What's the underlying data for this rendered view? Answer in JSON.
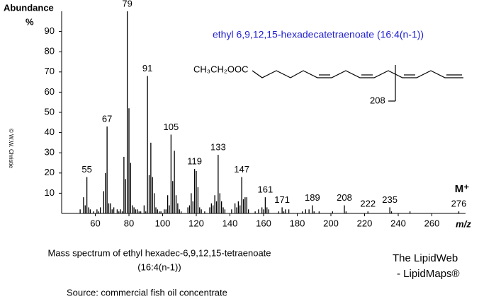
{
  "chart_data": {
    "type": "stem",
    "title": "ethyl 6,9,12,15-hexadecatetraenoate  (16:4(n-1))",
    "y_label": "Abundance",
    "y_unit": "%",
    "x_label": "m/z",
    "molecular_ion_label": "M⁺",
    "structure_formula": "CH₃CH₂OOC",
    "structure_fragment_label": "208",
    "caption": [
      "Mass spectrum of ethyl hexadec-6,9,12,15-tetraenoate",
      "(16:4(n-1))"
    ],
    "credit": [
      "The LipidWeb",
      "- LipidMaps®"
    ],
    "source": "Source:  commercial fish oil concentrate",
    "copyright": "© W.W. Christie",
    "color": "#000000",
    "xlim": [
      40,
      280
    ],
    "ylim": [
      0,
      100
    ],
    "xticks": [
      60,
      80,
      100,
      120,
      140,
      160,
      180,
      200,
      220,
      240,
      260
    ],
    "yticks": [
      10,
      20,
      30,
      40,
      50,
      60,
      70,
      80,
      90
    ],
    "x": [
      51,
      53,
      54,
      55,
      56,
      57,
      59,
      61,
      62,
      63,
      65,
      66,
      67,
      68,
      69,
      70,
      71,
      73,
      74,
      75,
      76,
      77,
      78,
      79,
      80,
      81,
      82,
      83,
      84,
      85,
      86,
      87,
      89,
      90,
      91,
      92,
      93,
      94,
      95,
      96,
      97,
      98,
      99,
      101,
      102,
      103,
      104,
      105,
      106,
      107,
      108,
      109,
      110,
      111,
      115,
      116,
      117,
      118,
      119,
      120,
      121,
      122,
      123,
      125,
      128,
      129,
      130,
      131,
      132,
      133,
      134,
      135,
      136,
      137,
      141,
      143,
      144,
      145,
      146,
      147,
      148,
      149,
      150,
      151,
      155,
      157,
      159,
      160,
      161,
      162,
      163,
      169,
      171,
      172,
      173,
      175,
      183,
      185,
      187,
      189,
      190,
      193,
      201,
      208,
      209,
      222,
      235,
      236,
      247,
      276
    ],
    "values": [
      2,
      8,
      4,
      18,
      3,
      2,
      1,
      2,
      1,
      3,
      11,
      20,
      43,
      5,
      5,
      2,
      3,
      2,
      1,
      2,
      1,
      28,
      17,
      100,
      52,
      25,
      4,
      3,
      2,
      2,
      1,
      1,
      4,
      1,
      68,
      19,
      35,
      18,
      10,
      3,
      2,
      1,
      1,
      2,
      2,
      9,
      4,
      39,
      16,
      31,
      9,
      5,
      2,
      1,
      3,
      4,
      10,
      6,
      22,
      21,
      13,
      3,
      2,
      1,
      3,
      5,
      4,
      9,
      6,
      29,
      10,
      6,
      3,
      2,
      2,
      5,
      3,
      6,
      4,
      18,
      7,
      8,
      8,
      2,
      1,
      2,
      3,
      2,
      8,
      3,
      2,
      1,
      3,
      1,
      2,
      2,
      1,
      2,
      2,
      4,
      1,
      1,
      1,
      4,
      1,
      1,
      3,
      1,
      1,
      1
    ],
    "peak_labels": [
      55,
      67,
      79,
      91,
      105,
      119,
      133,
      147,
      161,
      171,
      189,
      208,
      222,
      235,
      276
    ]
  }
}
